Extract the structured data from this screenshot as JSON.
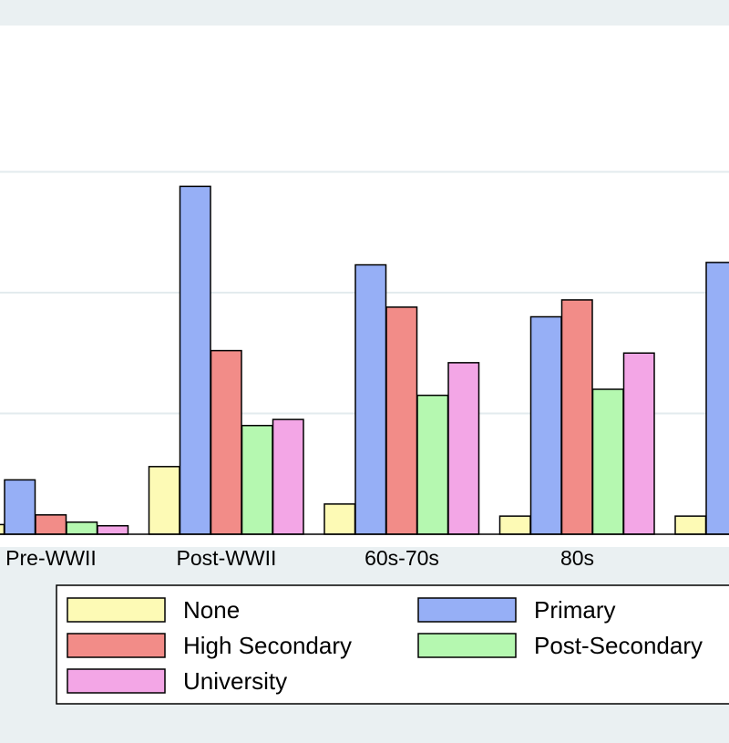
{
  "chart_data": {
    "type": "bar",
    "categories": [
      "Pre-WWII",
      "Post-WWII",
      "60s-70s",
      "80s",
      ""
    ],
    "series": [
      {
        "name": "None",
        "color": "#fdfab5",
        "values": [
          0.8,
          5.6,
          2.5,
          1.5,
          1.5
        ]
      },
      {
        "name": "Primary",
        "color": "#96aff6",
        "values": [
          4.5,
          28.8,
          22.3,
          18.0,
          22.5
        ]
      },
      {
        "name": "High Secondary",
        "color": "#f28c88",
        "values": [
          1.6,
          15.2,
          18.8,
          19.4,
          null
        ]
      },
      {
        "name": "Post-Secondary",
        "color": "#b5f8b0",
        "values": [
          1.0,
          9.0,
          11.5,
          12.0,
          null
        ]
      },
      {
        "name": "University",
        "color": "#f3a6e6",
        "values": [
          0.7,
          9.5,
          14.2,
          15.0,
          null
        ]
      }
    ],
    "ylim": [
      0,
      30
    ],
    "gridlines": [
      10,
      20,
      30
    ],
    "grid": true,
    "legend_position": "bottom"
  }
}
